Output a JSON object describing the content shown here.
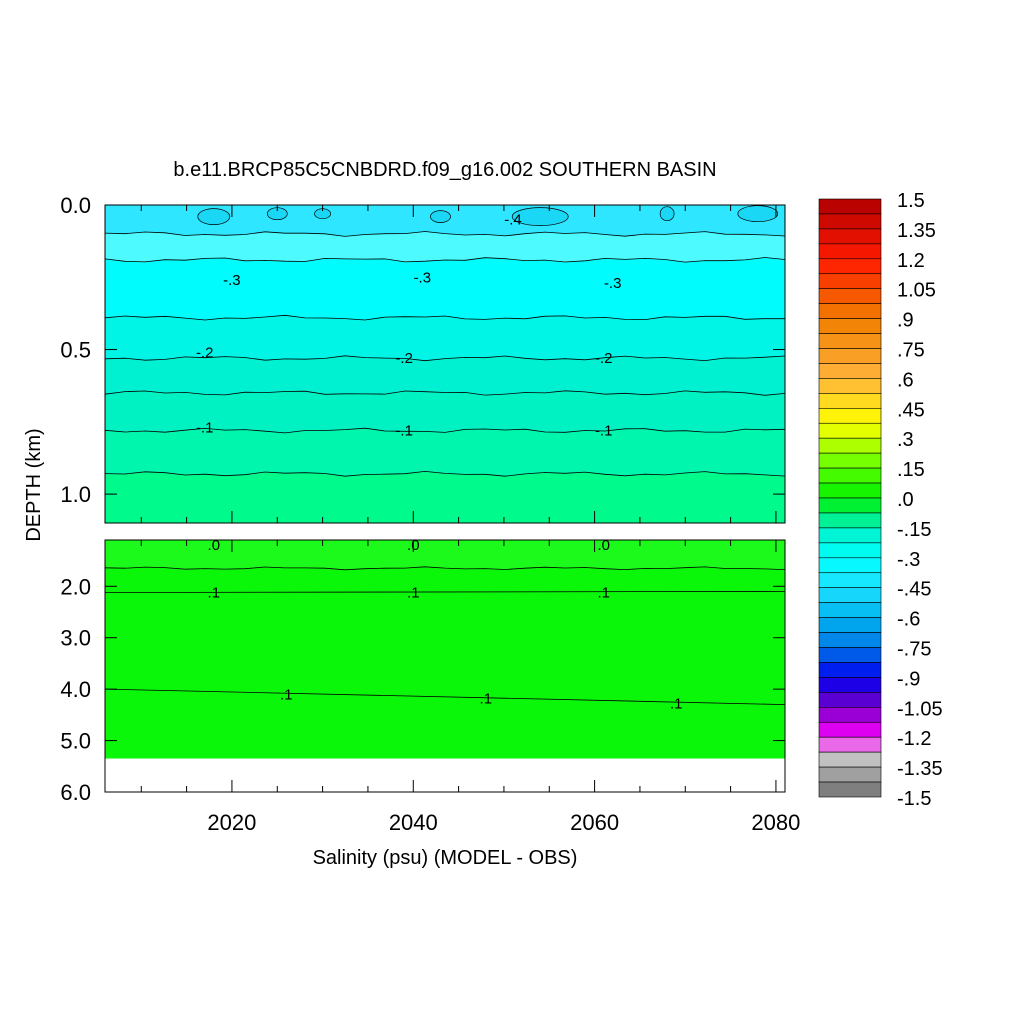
{
  "chart_data": {
    "type": "heatmap",
    "title": "b.e11.BRCP85C5CNBDRD.f09_g16.002 SOUTHERN BASIN",
    "xlabel": "Salinity (psu) (MODEL - OBS)",
    "ylabel": "DEPTH (km)",
    "xlim": [
      2006,
      2081
    ],
    "x_ticks": [
      "2020",
      "2040",
      "2060",
      "2080"
    ],
    "x_tick_values": [
      2020,
      2040,
      2060,
      2080
    ],
    "upper_panel": {
      "ylim": [
        0.0,
        1.1
      ],
      "y_ticks": [
        "0.0",
        "0.5",
        "1.0"
      ],
      "y_tick_values": [
        0.0,
        0.5,
        1.0
      ],
      "bands": [
        {
          "from": 0.0,
          "to": 0.1,
          "value": -0.375,
          "color": "#2ee6ff"
        },
        {
          "from": 0.1,
          "to": 0.19,
          "value": -0.325,
          "color": "#4dfaff"
        },
        {
          "from": 0.19,
          "to": 0.39,
          "value": -0.275,
          "color": "#00fcfc"
        },
        {
          "from": 0.39,
          "to": 0.53,
          "value": -0.225,
          "color": "#00f5e6"
        },
        {
          "from": 0.53,
          "to": 0.65,
          "value": -0.175,
          "color": "#00f0d2"
        },
        {
          "from": 0.65,
          "to": 0.78,
          "value": -0.125,
          "color": "#00f2c2"
        },
        {
          "from": 0.78,
          "to": 0.93,
          "value": -0.075,
          "color": "#00f5ad"
        },
        {
          "from": 0.93,
          "to": 1.1,
          "value": -0.025,
          "color": "#00fb8c"
        }
      ],
      "contour_labels": [
        {
          "text": "-.4",
          "x": 2051,
          "depth": 0.05
        },
        {
          "text": "-.3",
          "x": 2020,
          "depth": 0.26
        },
        {
          "text": "-.3",
          "x": 2041,
          "depth": 0.25
        },
        {
          "text": "-.3",
          "x": 2062,
          "depth": 0.27
        },
        {
          "text": "-.2",
          "x": 2017,
          "depth": 0.51
        },
        {
          "text": "-.2",
          "x": 2039,
          "depth": 0.53
        },
        {
          "text": "-.2",
          "x": 2061,
          "depth": 0.53
        },
        {
          "text": "-.1",
          "x": 2017,
          "depth": 0.77
        },
        {
          "text": "-.1",
          "x": 2039,
          "depth": 0.78
        },
        {
          "text": "-.1",
          "x": 2061,
          "depth": 0.78
        }
      ]
    },
    "lower_panel": {
      "ylim": [
        1.1,
        6.0
      ],
      "y_ticks": [
        "2.0",
        "3.0",
        "4.0",
        "5.0",
        "6.0"
      ],
      "y_tick_values": [
        2.0,
        3.0,
        4.0,
        5.0,
        6.0
      ],
      "bands": [
        {
          "from": 1.1,
          "to": 1.65,
          "value": 0.025,
          "color": "#1cfa1c"
        },
        {
          "from": 1.65,
          "to": 5.35,
          "value": 0.075,
          "color": "#0af70a"
        }
      ],
      "no_data_below": 5.35,
      "contour_labels": [
        {
          "text": ".0",
          "x": 2018,
          "depth": 1.2
        },
        {
          "text": ".0",
          "x": 2040,
          "depth": 1.2
        },
        {
          "text": ".0",
          "x": 2061,
          "depth": 1.2
        },
        {
          "text": ".1",
          "x": 2018,
          "depth": 2.12
        },
        {
          "text": ".1",
          "x": 2040,
          "depth": 2.12
        },
        {
          "text": ".1",
          "x": 2061,
          "depth": 2.12
        },
        {
          "text": ".1",
          "x": 2026,
          "depth": 4.1
        },
        {
          "text": ".1",
          "x": 2048,
          "depth": 4.18
        },
        {
          "text": ".1",
          "x": 2069,
          "depth": 4.28
        }
      ]
    },
    "colorbar": {
      "labels": [
        "1.5",
        "1.35",
        "1.2",
        "1.05",
        ".9",
        ".75",
        ".6",
        ".45",
        ".3",
        ".15",
        ".0",
        "-.15",
        "-.3",
        "-.45",
        "-.6",
        "-.75",
        "-.9",
        "-1.05",
        "-1.2",
        "-1.35",
        "-1.5"
      ],
      "min": -1.5,
      "max": 1.5,
      "step": 0.075,
      "anchor_colors": [
        {
          "value": 1.5,
          "color": "#b00000"
        },
        {
          "value": 1.2,
          "color": "#ff1a00"
        },
        {
          "value": 0.9,
          "color": "#f07d00"
        },
        {
          "value": 0.6,
          "color": "#ffb43c"
        },
        {
          "value": 0.375,
          "color": "#ffff00"
        },
        {
          "value": 0.3,
          "color": "#c8ff00"
        },
        {
          "value": 0.15,
          "color": "#5aff00"
        },
        {
          "value": 0.0,
          "color": "#00f000"
        },
        {
          "value": -0.15,
          "color": "#00f0c8"
        },
        {
          "value": -0.3,
          "color": "#00ffff"
        },
        {
          "value": -0.45,
          "color": "#1ee1ff"
        },
        {
          "value": -0.6,
          "color": "#00b4f0"
        },
        {
          "value": -0.75,
          "color": "#0078e6"
        },
        {
          "value": -0.9,
          "color": "#0000f0"
        },
        {
          "value": -1.05,
          "color": "#7800c8"
        },
        {
          "value": -1.2,
          "color": "#ff00ff"
        },
        {
          "value": -1.275,
          "color": "#d2d2d2"
        },
        {
          "value": -1.5,
          "color": "#6e6e6e"
        }
      ]
    }
  }
}
